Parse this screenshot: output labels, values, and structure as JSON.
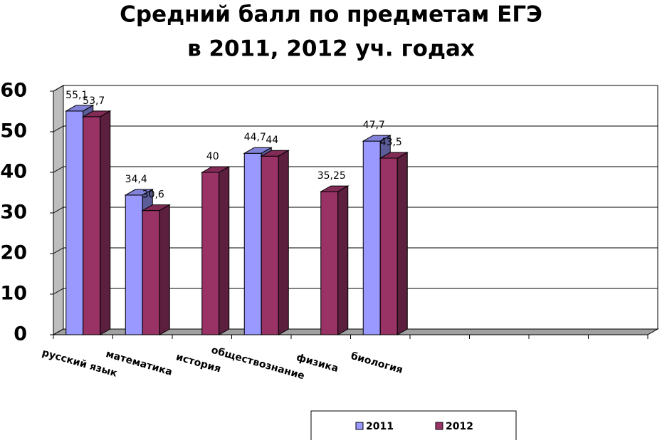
{
  "chart_data": {
    "type": "bar3d",
    "title": [
      "Средний балл по предметам ЕГЭ",
      "в 2011, 2012 уч. годах"
    ],
    "categories": [
      "русский язык",
      "математика",
      "история",
      "обществознание",
      "физика",
      "биология",
      null,
      null,
      null,
      null
    ],
    "series": [
      {
        "name": "2011",
        "color": "#9999ff",
        "values": [
          55.1,
          34.4,
          null,
          44.7,
          null,
          47.7,
          null,
          null,
          null,
          null
        ],
        "value_labels": [
          "55,1",
          "34,4",
          null,
          "44,7",
          null,
          "47,7",
          null,
          null,
          null,
          null
        ]
      },
      {
        "name": "2012",
        "color": "#993366",
        "values": [
          53.7,
          30.6,
          40,
          44,
          35.25,
          43.5,
          null,
          null,
          null,
          null
        ],
        "value_labels": [
          "53,7",
          "30,6",
          "40",
          "44",
          "35,25",
          "43,5",
          null,
          null,
          null,
          null
        ]
      }
    ],
    "ylim": [
      0,
      60
    ],
    "yticks": [
      0,
      10,
      20,
      30,
      40,
      50,
      60
    ],
    "grid": true,
    "legend": "bottom"
  }
}
